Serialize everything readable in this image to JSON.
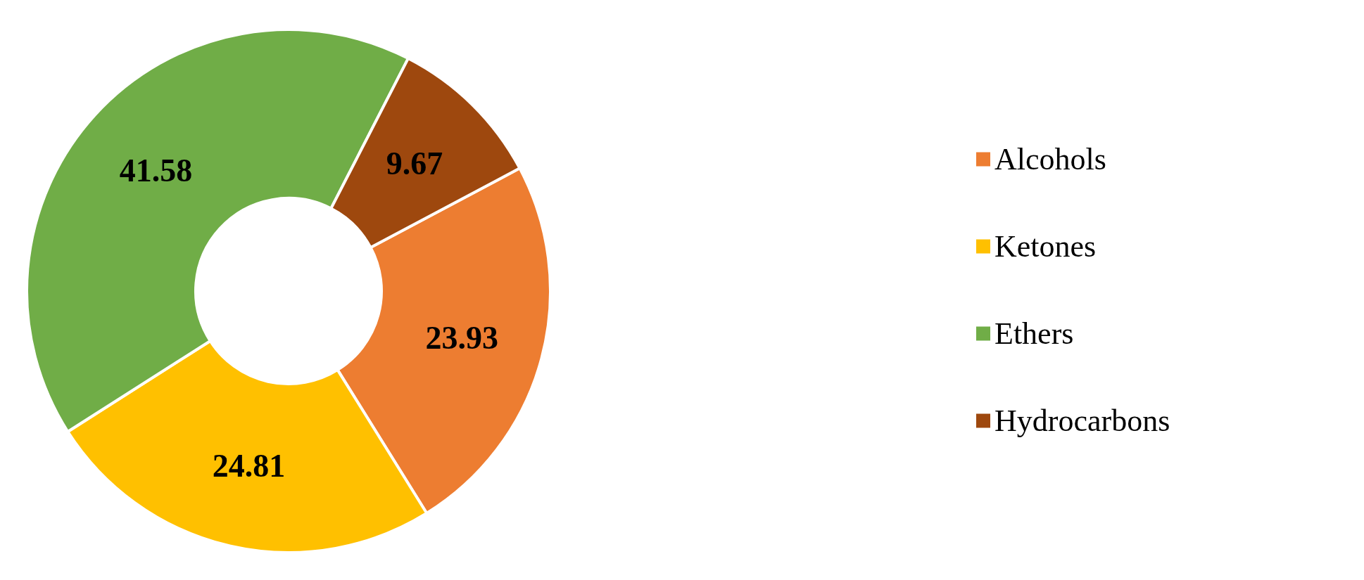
{
  "chart_data": {
    "type": "donut",
    "categories": [
      "Alcohols",
      "Ketones",
      "Ethers",
      "Hydrocarbons"
    ],
    "values": [
      23.93,
      24.81,
      41.58,
      9.67
    ],
    "colors": [
      "#ed7d31",
      "#ffc000",
      "#70ad47",
      "#9e480e"
    ],
    "data_labels": true,
    "legend": "right"
  }
}
